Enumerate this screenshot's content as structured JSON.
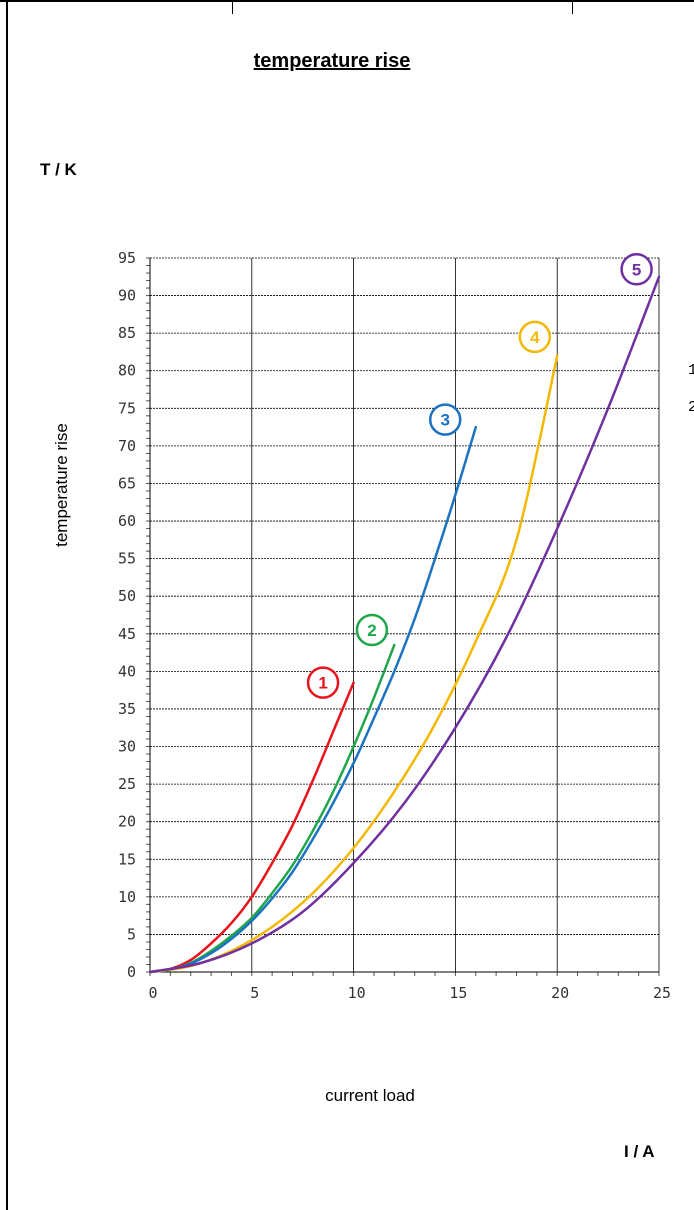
{
  "title": "temperature rise",
  "unit_y": "T / K",
  "unit_x": "I / A",
  "edge_numbers": [
    "1",
    "2"
  ],
  "chart_data": {
    "type": "line",
    "title": "temperature rise",
    "xlabel": "current load",
    "ylabel": "temperature rise",
    "xlim": [
      0,
      25
    ],
    "ylim": [
      0,
      95
    ],
    "x_ticks": [
      0,
      5,
      10,
      15,
      20,
      25
    ],
    "y_ticks": [
      0,
      5,
      10,
      15,
      20,
      25,
      30,
      35,
      40,
      45,
      50,
      55,
      60,
      65,
      70,
      75,
      80,
      85,
      90,
      95
    ],
    "grid": true,
    "series": [
      {
        "name": "1",
        "color": "#e8141b",
        "x": [
          0,
          1,
          2,
          3,
          4,
          5,
          6,
          7,
          8,
          9,
          10
        ],
        "y": [
          0,
          0.4,
          1.6,
          3.8,
          6.5,
          10.0,
          14.5,
          19.5,
          25.5,
          32.0,
          38.5
        ]
      },
      {
        "name": "2",
        "color": "#1fa64a",
        "x": [
          0,
          1,
          2,
          3,
          4,
          5,
          6,
          7,
          8,
          9,
          10,
          11,
          12
        ],
        "y": [
          0,
          0.3,
          1.2,
          2.8,
          4.8,
          7.2,
          10.5,
          14.2,
          18.8,
          24.0,
          30.0,
          36.5,
          43.5
        ]
      },
      {
        "name": "3",
        "color": "#1b73c1",
        "x": [
          0,
          1,
          2,
          3,
          4,
          5,
          6,
          7,
          8,
          9,
          10,
          11,
          12,
          13,
          14,
          15,
          16
        ],
        "y": [
          0,
          0.3,
          1.1,
          2.5,
          4.4,
          6.8,
          9.8,
          13.3,
          17.7,
          22.5,
          27.8,
          33.8,
          40.0,
          47.0,
          55.0,
          63.5,
          72.5
        ]
      },
      {
        "name": "4",
        "color": "#f5b800",
        "x": [
          0,
          2,
          4,
          6,
          8,
          10,
          12,
          14,
          16,
          18,
          20
        ],
        "y": [
          0,
          0.8,
          2.8,
          6.0,
          10.5,
          16.5,
          24.0,
          33.0,
          44.0,
          57.5,
          82.0
        ]
      },
      {
        "name": "5",
        "color": "#7030a0",
        "x": [
          0,
          2.5,
          5,
          7.5,
          10,
          12.5,
          15,
          17.5,
          20,
          22.5,
          25
        ],
        "y": [
          0,
          1.2,
          3.8,
          8.0,
          14.5,
          22.5,
          32.5,
          44.5,
          59.0,
          75.0,
          92.5
        ]
      }
    ],
    "markers": [
      {
        "label": "1",
        "color": "#e8141b",
        "x": 8.5,
        "y": 38.5
      },
      {
        "label": "2",
        "color": "#1fa64a",
        "x": 10.9,
        "y": 45.5
      },
      {
        "label": "3",
        "color": "#1b73c1",
        "x": 14.5,
        "y": 73.5
      },
      {
        "label": "4",
        "color": "#f5b800",
        "x": 18.9,
        "y": 84.5
      },
      {
        "label": "5",
        "color": "#7030a0",
        "x": 23.9,
        "y": 93.5
      }
    ]
  }
}
